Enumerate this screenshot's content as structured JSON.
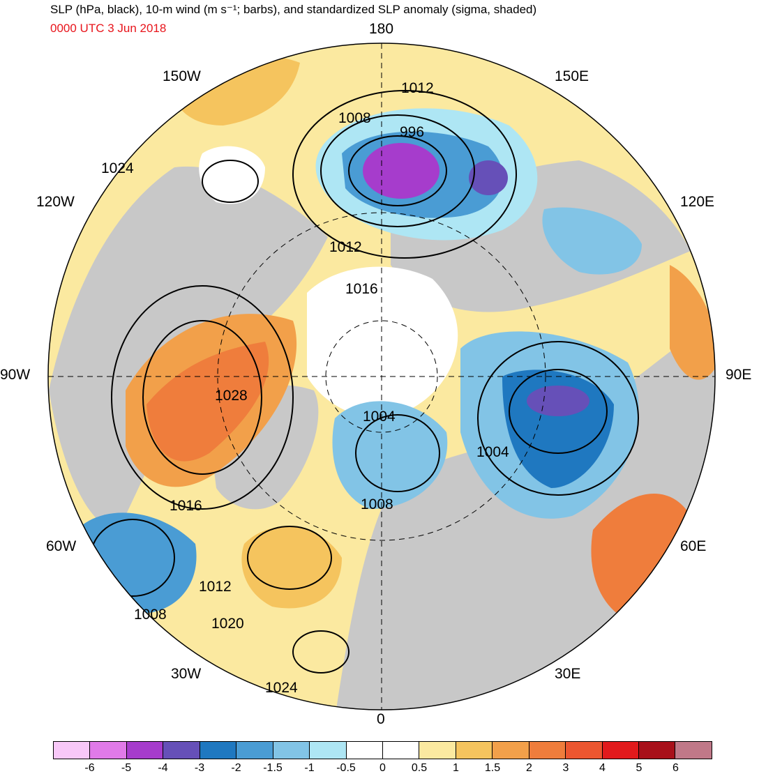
{
  "title": "SLP (hPa, black), 10-m wind (m s⁻¹; barbs), and standardized SLP anomaly (sigma, shaded)",
  "valid_time": "0000 UTC 3 Jun 2018",
  "longitude_labels": {
    "n180": "180",
    "w150": "150W",
    "e150": "150E",
    "w120": "120W",
    "e120": "120E",
    "w90": "90W",
    "e90": "90E",
    "w60": "60W",
    "e60": "60E",
    "w30": "30W",
    "e30": "30E",
    "s0": "0"
  },
  "contour_labels": {
    "c1012a": "1012",
    "c1008a": "1008",
    "c996": "996",
    "c1024a": "1024",
    "c1012b": "1012",
    "c1016a": "1016",
    "c1028": "1028",
    "c1004a": "1004",
    "c1004b": "1004",
    "c1008b": "1008",
    "c1016b": "1016",
    "c1012c": "1012",
    "c1008c": "1008",
    "c1020": "1020",
    "c1024b": "1024"
  },
  "colorbar": {
    "colors": [
      "#f8c8f8",
      "#e07ae8",
      "#a63ccc",
      "#6650b8",
      "#1f78c0",
      "#4a9cd4",
      "#82c4e6",
      "#aee6f4",
      "#ffffff",
      "#ffffff",
      "#fbe9a0",
      "#f5c45e",
      "#f2a04a",
      "#ef7d3c",
      "#ec5630",
      "#e21a1c",
      "#a8101a",
      "#c07888"
    ],
    "tick_labels": [
      "-6",
      "-5",
      "-4",
      "-3",
      "-2",
      "-1.5",
      "-1",
      "-0.5",
      "0",
      "0.5",
      "1",
      "1.5",
      "2",
      "3",
      "4",
      "5",
      "6"
    ]
  },
  "map_colors": {
    "land": "#c8c8c8",
    "ocean_bg": "#ffffff",
    "contour": "#000000"
  }
}
